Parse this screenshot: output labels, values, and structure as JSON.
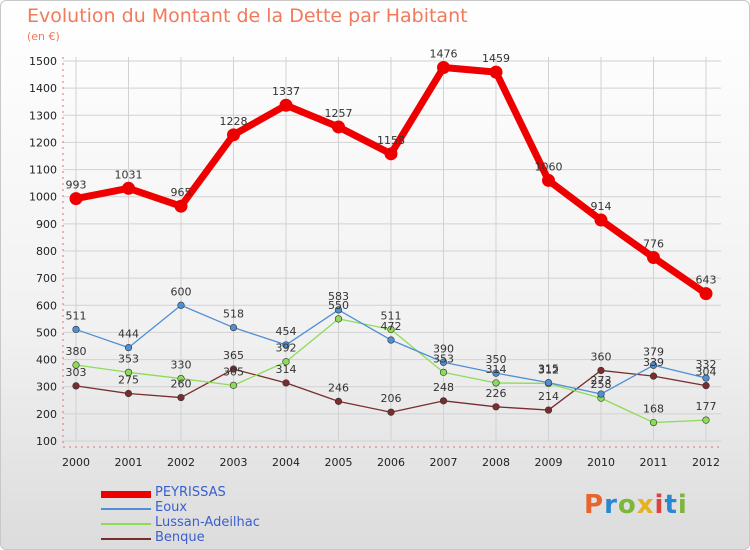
{
  "header": {
    "title": "Evolution du Montant de la Dette par Habitant",
    "subtitle": "(en €)"
  },
  "logo": {
    "text": "Proxiti",
    "colors": [
      "#e8642c",
      "#2a87d0",
      "#7cb63a",
      "#e5b223",
      "#e04040",
      "#2a87d0",
      "#7cb63a"
    ]
  },
  "chart_data": {
    "type": "line",
    "x": [
      "2000",
      "2001",
      "2002",
      "2003",
      "2004",
      "2005",
      "2006",
      "2007",
      "2008",
      "2009",
      "2010",
      "2011",
      "2012"
    ],
    "ylim": [
      100,
      1500
    ],
    "yticks": [
      "100",
      "200",
      "300",
      "400",
      "500",
      "600",
      "700",
      "800",
      "900",
      "1000",
      "1100",
      "1200",
      "1300",
      "1400",
      "1500"
    ],
    "grid": true,
    "legend_position": "bottom-left",
    "series": [
      {
        "name": "PEYRISSAS",
        "color": "#ee0000",
        "values": [
          993,
          1031,
          965,
          1228,
          1337,
          1257,
          1158,
          1476,
          1459,
          1060,
          914,
          776,
          643
        ]
      },
      {
        "name": "Eoux",
        "color": "#4f8fd4",
        "values": [
          511,
          444,
          600,
          518,
          454,
          583,
          472,
          390,
          350,
          315,
          273,
          379,
          332
        ]
      },
      {
        "name": "Lussan-Adeilhac",
        "color": "#8ddc58",
        "values": [
          380,
          353,
          330,
          305,
          392,
          550,
          511,
          353,
          314,
          312,
          258,
          168,
          177
        ]
      },
      {
        "name": "Benque",
        "color": "#7a2d2d",
        "values": [
          303,
          275,
          260,
          365,
          314,
          246,
          206,
          248,
          226,
          214,
          360,
          339,
          304
        ]
      }
    ],
    "data_labels": {
      "PEYRISSAS": [
        "993",
        "1031",
        "965",
        "1228",
        "1337",
        "1257",
        "1158",
        "1476",
        "1459",
        "1060",
        "914",
        "776",
        "643"
      ],
      "Eoux": [
        "511",
        "444",
        "600",
        "518",
        "454",
        "583",
        "472",
        "390",
        "350",
        "315",
        "273",
        "379",
        "332"
      ],
      "Lussan-Adeilhac": [
        "380",
        "353",
        "330",
        "305",
        "392",
        "550",
        "511",
        "353",
        "314",
        "312",
        "258",
        "168",
        "177"
      ],
      "Benque": [
        "303",
        "275",
        "260",
        "365",
        "314",
        "246",
        "206",
        "248",
        "226",
        "214",
        "360",
        "339",
        "304"
      ]
    }
  }
}
